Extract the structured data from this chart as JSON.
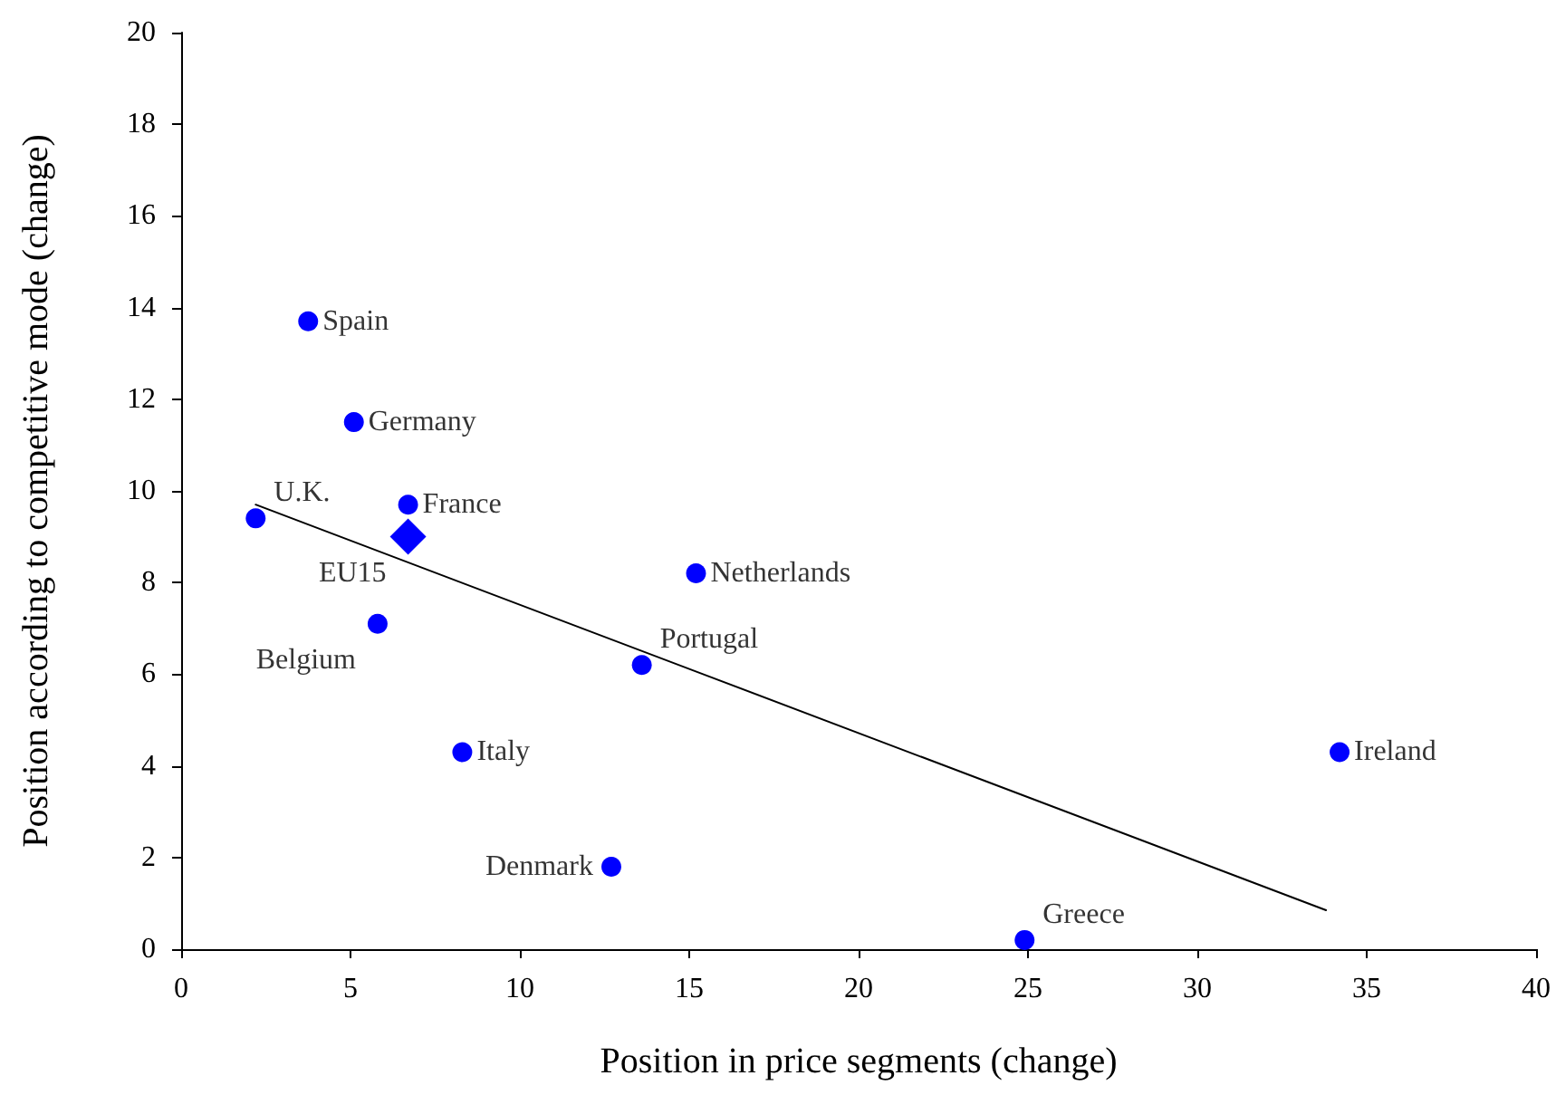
{
  "chart_data": {
    "type": "scatter",
    "xlabel": "Position in price segments (change)",
    "ylabel": "Position according to competitive mode (change)",
    "xlim": [
      0,
      40
    ],
    "xticks": [
      0,
      5,
      10,
      15,
      20,
      25,
      30,
      35,
      40
    ],
    "ylim": [
      0,
      20
    ],
    "yticks": [
      0,
      2,
      4,
      6,
      8,
      10,
      12,
      14,
      16,
      18,
      20
    ],
    "grid": false,
    "series": [
      {
        "color": "#0000ff",
        "marker": "circle",
        "x": [
          3.75,
          5.1,
          6.7,
          2.2,
          5.8,
          15.2,
          13.6,
          8.3,
          34.2,
          12.7,
          24.9
        ],
        "values": [
          13.7,
          11.5,
          9.7,
          9.4,
          7.1,
          8.2,
          6.2,
          4.3,
          4.3,
          1.8,
          0.2
        ]
      },
      {
        "color": "#0000ff",
        "marker": "diamond",
        "x": [
          6.7
        ],
        "values": [
          9.0
        ]
      },
      {
        "type": "line",
        "color": "#000000",
        "marker": "none",
        "line_style": "solid",
        "x": [
          2.2,
          33.8
        ],
        "values": [
          9.7,
          0.85
        ]
      }
    ],
    "annotations": [
      {
        "text": "Spain",
        "x": 3.75,
        "y": 13.7
      },
      {
        "text": "Germany",
        "x": 5.1,
        "y": 11.5
      },
      {
        "text": "France",
        "x": 6.7,
        "y": 9.7
      },
      {
        "text": "U.K.",
        "x": 2.2,
        "y": 9.4
      },
      {
        "text": "EU15",
        "x": 6.7,
        "y": 9.0
      },
      {
        "text": "Belgium",
        "x": 5.8,
        "y": 7.1
      },
      {
        "text": "Netherlands",
        "x": 15.2,
        "y": 8.2
      },
      {
        "text": "Portugal",
        "x": 13.6,
        "y": 6.2
      },
      {
        "text": "Italy",
        "x": 8.3,
        "y": 4.3
      },
      {
        "text": "Ireland",
        "x": 34.2,
        "y": 4.3
      },
      {
        "text": "Denmark",
        "x": 12.7,
        "y": 1.8
      },
      {
        "text": "Greece",
        "x": 24.9,
        "y": 0.2
      }
    ]
  }
}
